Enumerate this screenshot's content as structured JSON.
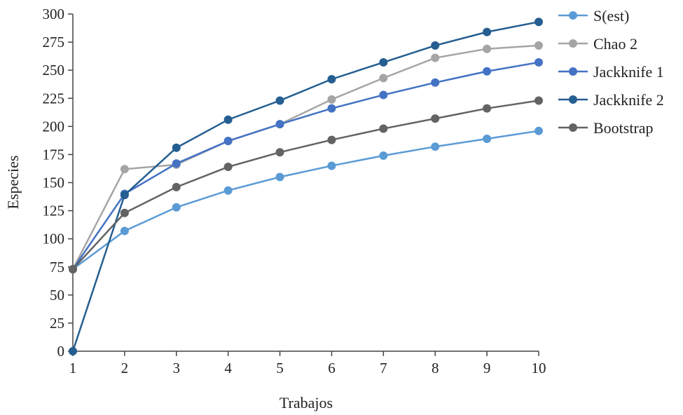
{
  "chart_data": {
    "type": "line",
    "title": "",
    "xlabel": "Trabajos",
    "ylabel": "Especies",
    "x": [
      1,
      2,
      3,
      4,
      5,
      6,
      7,
      8,
      9,
      10
    ],
    "xlim": [
      1,
      10
    ],
    "ylim": [
      0,
      300
    ],
    "y_ticks": [
      0,
      25,
      50,
      75,
      100,
      125,
      150,
      175,
      200,
      225,
      250,
      275,
      300
    ],
    "x_ticks": [
      1,
      2,
      3,
      4,
      5,
      6,
      7,
      8,
      9,
      10
    ],
    "grid": false,
    "legend_position": "right",
    "series": [
      {
        "name": "S(est)",
        "color": "#5b9bd5",
        "values": [
          73,
          107,
          128,
          143,
          155,
          165,
          174,
          182,
          189,
          196
        ]
      },
      {
        "name": "Chao 2",
        "color": "#a5a5a5",
        "values": [
          73,
          162,
          166,
          187,
          202,
          224,
          243,
          261,
          269,
          272
        ]
      },
      {
        "name": "Jackknife 1",
        "color": "#4472c4",
        "values": [
          73,
          140,
          167,
          187,
          202,
          216,
          228,
          239,
          249,
          257
        ]
      },
      {
        "name": "Jackknife 2",
        "color": "#255e91",
        "values": [
          0,
          139,
          181,
          206,
          223,
          242,
          257,
          272,
          284,
          293
        ]
      },
      {
        "name": "Bootstrap",
        "color": "#636363",
        "values": [
          73,
          123,
          146,
          164,
          177,
          188,
          198,
          207,
          216,
          223
        ]
      }
    ]
  }
}
